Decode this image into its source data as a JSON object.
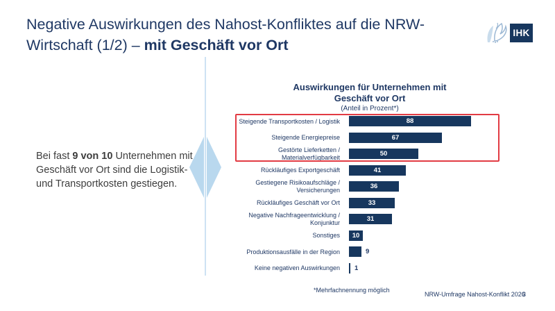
{
  "slide": {
    "title_line1": "Negative Auswirkungen des Nahost-Konfliktes auf die NRW-",
    "title_line2_regular": "Wirtschaft (1/2) – ",
    "title_line2_bold": "mit Geschäft vor Ort",
    "footnote": "*Mehrfachnennung möglich",
    "footer_source": "NRW-Umfrage Nahost-Konflikt 2026",
    "page_number": "3"
  },
  "logo": {
    "label": "IHK"
  },
  "callout": {
    "before": "Bei fast ",
    "bold": "9 von 10",
    "after": " Unternehmen mit Geschäft vor Ort sind die Logistik- und Transportkosten gestiegen."
  },
  "chart_data": {
    "type": "bar",
    "orientation": "horizontal",
    "title": "Auswirkungen für Unternehmen mit Geschäft vor Ort",
    "subtitle": "(Anteil in Prozent*)",
    "unit": "percent",
    "categories": [
      "Steigende Transportkosten / Logistik",
      "Steigende Energiepreise",
      "Gestörte Lieferketten / Materialverfügbarkeit",
      "Rückläufiges Exportgeschäft",
      "Gestiegene Risikoaufschläge / Versicherungen",
      "Rückläufiges Geschäft vor Ort",
      "Negative Nachfrageentwicklung / Konjunktur",
      "Sonstiges",
      "Produktionsausfälle in der Region",
      "Keine negativen Auswirkungen"
    ],
    "values": [
      88,
      67,
      50,
      41,
      36,
      33,
      31,
      10,
      9,
      1
    ],
    "xlim": [
      0,
      100
    ],
    "grid": false,
    "legend": null,
    "highlighted_categories": [
      "Steigende Transportkosten / Logistik",
      "Steigende Energiepreise",
      "Gestörte Lieferketten / Materialverfügbarkeit"
    ],
    "colors": {
      "bar": "#17375e",
      "value_inside": "#ffffff",
      "value_outside": "#1f3864",
      "label": "#1f3864",
      "highlight_box": "#e23b43",
      "accent_light_blue": "#b9d8ee",
      "title_navy": "#1f3864"
    }
  }
}
